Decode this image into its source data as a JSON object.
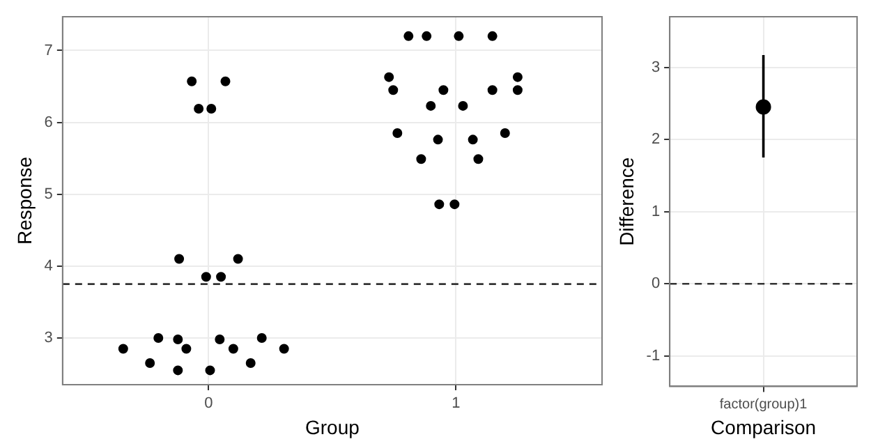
{
  "chart_data": [
    {
      "type": "scatter",
      "xlabel": "Group",
      "ylabel": "Response",
      "color": "#000000",
      "marker": "circle",
      "grid": true,
      "legend": false,
      "x": [
        -0.345,
        -0.237,
        -0.203,
        -0.124,
        -0.09,
        -0.124,
        0.006,
        0.045,
        0.1,
        0.17,
        0.215,
        0.305,
        -0.119,
        0.119,
        -0.01,
        0.05,
        -0.068,
        0.068,
        -0.04,
        0.011,
        0.808,
        0.881,
        1.011,
        1.147,
        0.729,
        1.249,
        0.746,
        0.949,
        1.147,
        1.249,
        0.898,
        1.028,
        0.763,
        0.927,
        1.068,
        1.198,
        0.859,
        1.09,
        0.932,
        0.994
      ],
      "values": [
        2.85,
        2.65,
        3.0,
        2.98,
        2.85,
        2.55,
        2.55,
        2.98,
        2.85,
        2.65,
        3.0,
        2.85,
        4.1,
        4.1,
        3.85,
        3.85,
        6.57,
        6.57,
        6.19,
        6.19,
        7.2,
        7.2,
        7.2,
        7.2,
        6.63,
        6.63,
        6.45,
        6.45,
        6.45,
        6.45,
        6.23,
        6.23,
        5.85,
        5.76,
        5.76,
        5.85,
        5.49,
        5.49,
        4.86,
        4.86
      ],
      "xlim": [
        -0.59,
        1.59
      ],
      "xticks": [
        0,
        1
      ],
      "ylim": [
        2.35,
        7.47
      ],
      "yticks": [
        3,
        4,
        5,
        6,
        7
      ],
      "ref_lines": [
        {
          "axis": "y",
          "value": 3.75,
          "line_style": "dashed",
          "color": "#333333"
        }
      ]
    },
    {
      "type": "scatter",
      "xlabel": "Comparison",
      "ylabel": "Difference",
      "color": "#000000",
      "marker": "circle",
      "grid": true,
      "legend": false,
      "categories": [
        "factor(group)1"
      ],
      "values": [
        2.45
      ],
      "errors": [
        [
          1.75,
          3.17
        ]
      ],
      "ylim": [
        -1.42,
        3.7
      ],
      "yticks": [
        -1,
        0,
        1,
        2,
        3
      ],
      "ref_lines": [
        {
          "axis": "y",
          "value": 0,
          "line_style": "dashed",
          "color": "#333333"
        }
      ]
    }
  ]
}
